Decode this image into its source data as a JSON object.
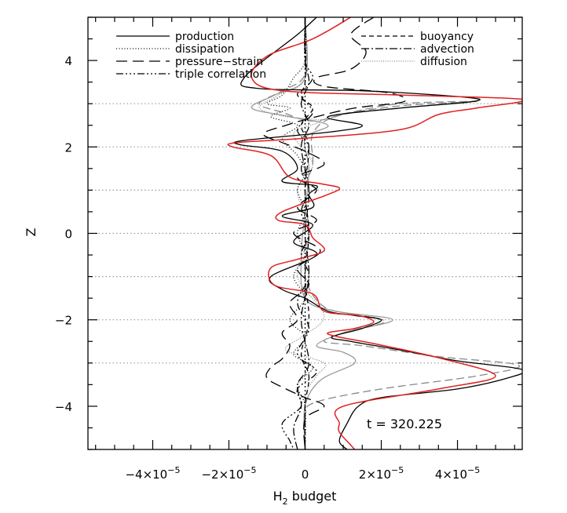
{
  "chart_data": {
    "type": "line",
    "xlabel_main": "H",
    "xlabel_sub": "2",
    "xlabel_rest": " budget",
    "ylabel": "Z",
    "xlim": [
      -5.7e-05,
      5.7e-05
    ],
    "ylim": [
      -5,
      5
    ],
    "x_ticks": [
      {
        "value": -4e-05,
        "mant": "−4×10",
        "exp": "−5"
      },
      {
        "value": -2e-05,
        "mant": "−2×10",
        "exp": "−5"
      },
      {
        "value": 0,
        "mant": "0",
        "exp": ""
      },
      {
        "value": 2e-05,
        "mant": "2×10",
        "exp": "−5"
      },
      {
        "value": 4e-05,
        "mant": "4×10",
        "exp": "−5"
      }
    ],
    "y_ticks": [
      {
        "value": -4,
        "label": "−4"
      },
      {
        "value": -2,
        "label": "−2"
      },
      {
        "value": 0,
        "label": "0"
      },
      {
        "value": 2,
        "label": "2"
      },
      {
        "value": 4,
        "label": "4"
      }
    ],
    "gridlines_y": [
      -3,
      -2,
      -1,
      0,
      1,
      2,
      3
    ],
    "annotation": "t  =  320.225",
    "series": [
      {
        "name": "production",
        "color": "#000000",
        "dash": "solid",
        "points": [
          [
            3e-06,
            5.0
          ],
          [
            -2e-06,
            4.6
          ],
          [
            -1.6e-05,
            3.6
          ],
          [
            -1.2e-05,
            3.35
          ],
          [
            1.5e-05,
            3.3
          ],
          [
            4.2e-05,
            3.15
          ],
          [
            4.4e-05,
            3.05
          ],
          [
            2.5e-05,
            2.9
          ],
          [
            6e-06,
            2.7
          ],
          [
            1.5e-05,
            2.5
          ],
          [
            7e-06,
            2.35
          ],
          [
            -1.6e-05,
            2.15
          ],
          [
            -1.7e-05,
            2.05
          ],
          [
            -6e-06,
            1.9
          ],
          [
            -2e-06,
            1.5
          ],
          [
            -6e-06,
            1.2
          ],
          [
            3e-06,
            1.1
          ],
          [
            1e-06,
            0.9
          ],
          [
            2e-06,
            0.6
          ],
          [
            -6e-06,
            0.4
          ],
          [
            2e-06,
            0.2
          ],
          [
            -3e-06,
            -0.2
          ],
          [
            3e-06,
            -0.5
          ],
          [
            -9e-06,
            -1.0
          ],
          [
            -6e-06,
            -1.3
          ],
          [
            0.0,
            -1.5
          ],
          [
            6e-06,
            -1.8
          ],
          [
            1.3e-05,
            -1.9
          ],
          [
            2e-05,
            -2.0
          ],
          [
            1.5e-05,
            -2.2
          ],
          [
            7e-06,
            -2.4
          ],
          [
            1.2e-05,
            -2.5
          ],
          [
            2.5e-05,
            -2.7
          ],
          [
            4e-05,
            -2.95
          ],
          [
            5.7e-05,
            -3.15
          ],
          [
            5.3e-05,
            -3.35
          ],
          [
            4e-05,
            -3.6
          ],
          [
            2e-05,
            -3.8
          ],
          [
            1.4e-05,
            -4.0
          ],
          [
            1.1e-05,
            -4.4
          ],
          [
            9e-06,
            -4.8
          ],
          [
            1.1e-05,
            -5.0
          ]
        ]
      },
      {
        "name": "production (red)",
        "color": "#e02020",
        "dash": "solid",
        "points": [
          [
            1.2e-05,
            5.0
          ],
          [
            2e-06,
            4.5
          ],
          [
            -1e-05,
            4.1
          ],
          [
            -1.4e-05,
            3.6
          ],
          [
            -6e-06,
            3.3
          ],
          [
            2.5e-05,
            3.2
          ],
          [
            5.7e-05,
            3.1
          ],
          [
            4.5e-05,
            2.9
          ],
          [
            3.5e-05,
            2.75
          ],
          [
            2.5e-05,
            2.4
          ],
          [
            0.0,
            2.2
          ],
          [
            -1.8e-05,
            2.1
          ],
          [
            -1.9e-05,
            2.0
          ],
          [
            -9e-06,
            1.8
          ],
          [
            -4e-06,
            1.3
          ],
          [
            4e-06,
            1.15
          ],
          [
            9e-06,
            1.05
          ],
          [
            6e-06,
            0.9
          ],
          [
            -6e-06,
            0.5
          ],
          [
            -7e-06,
            0.3
          ],
          [
            0.0,
            0.2
          ],
          [
            2e-06,
            -0.1
          ],
          [
            5e-06,
            -0.4
          ],
          [
            -2e-06,
            -0.6
          ],
          [
            -9e-06,
            -0.8
          ],
          [
            -8e-06,
            -1.2
          ],
          [
            2e-06,
            -1.4
          ],
          [
            5e-06,
            -1.8
          ],
          [
            1.4e-05,
            -1.9
          ],
          [
            1.8e-05,
            -2.05
          ],
          [
            1.3e-05,
            -2.2
          ],
          [
            6e-06,
            -2.3
          ],
          [
            9e-06,
            -2.4
          ],
          [
            1.8e-05,
            -2.55
          ],
          [
            3.6e-05,
            -2.9
          ],
          [
            5e-05,
            -3.3
          ],
          [
            3.5e-05,
            -3.6
          ],
          [
            1e-05,
            -4.0
          ],
          [
            9e-06,
            -4.4
          ],
          [
            9e-06,
            -4.6
          ],
          [
            1.2e-05,
            -4.9
          ],
          [
            1.3e-05,
            -5.0
          ]
        ]
      },
      {
        "name": "dissipation",
        "color": "#000000",
        "dash": "1,2.5",
        "points": [
          [
            0.0,
            5.0
          ],
          [
            0.0,
            4.0
          ],
          [
            -3e-06,
            3.6
          ],
          [
            -6e-06,
            3.2
          ],
          [
            -1e-05,
            3.0
          ],
          [
            -4e-06,
            2.9
          ],
          [
            -9e-06,
            2.7
          ],
          [
            -2e-06,
            2.5
          ],
          [
            -6e-06,
            2.2
          ],
          [
            -2e-06,
            1.8
          ],
          [
            0.0,
            1.4
          ],
          [
            -2e-06,
            1.0
          ],
          [
            0.0,
            0.5
          ],
          [
            -2e-06,
            0.0
          ],
          [
            0.0,
            -0.5
          ],
          [
            -3e-06,
            -1.0
          ],
          [
            0.0,
            -1.5
          ],
          [
            -4e-06,
            -2.0
          ],
          [
            0.0,
            -2.4
          ],
          [
            -3e-06,
            -2.8
          ],
          [
            2e-06,
            -3.1
          ],
          [
            -2e-06,
            -3.5
          ],
          [
            0.0,
            -4.0
          ],
          [
            0.0,
            -5.0
          ]
        ]
      },
      {
        "name": "pressure−strain",
        "color": "#000000",
        "dash": "14,7",
        "points": [
          [
            1.8e-05,
            5.0
          ],
          [
            1.2e-05,
            4.6
          ],
          [
            1.6e-05,
            4.2
          ],
          [
            1.2e-05,
            3.8
          ],
          [
            3e-06,
            3.6
          ],
          [
            5e-06,
            3.4
          ],
          [
            2.2e-05,
            3.25
          ],
          [
            2.6e-05,
            3.05
          ],
          [
            1.3e-05,
            2.9
          ],
          [
            3e-06,
            2.7
          ],
          [
            -5e-06,
            2.5
          ],
          [
            -1.1e-05,
            2.3
          ],
          [
            -6e-06,
            2.1
          ],
          [
            0.0,
            1.9
          ],
          [
            5e-06,
            1.6
          ],
          [
            -2e-06,
            1.3
          ],
          [
            3e-06,
            1.0
          ],
          [
            -2e-06,
            0.6
          ],
          [
            3e-06,
            0.3
          ],
          [
            -3e-06,
            0.0
          ],
          [
            4e-06,
            -0.4
          ],
          [
            -2e-06,
            -0.8
          ],
          [
            1e-06,
            -1.2
          ],
          [
            -4e-06,
            -1.6
          ],
          [
            -2e-06,
            -2.0
          ],
          [
            -6e-06,
            -2.3
          ],
          [
            -4e-06,
            -2.6
          ],
          [
            -6e-06,
            -2.9
          ],
          [
            -9e-06,
            -3.1
          ],
          [
            -1e-05,
            -3.35
          ],
          [
            -5e-06,
            -3.6
          ],
          [
            0.0,
            -3.8
          ],
          [
            5e-06,
            -4.0
          ],
          [
            0.0,
            -4.3
          ],
          [
            0.0,
            -5.0
          ]
        ]
      },
      {
        "name": "triple correlation",
        "color": "#000000",
        "dash": "9,3,2,3,2,3,2,3",
        "points": [
          [
            0.0,
            5.0
          ],
          [
            0.0,
            4.0
          ],
          [
            2e-06,
            3.6
          ],
          [
            -1e-06,
            3.2
          ],
          [
            2e-06,
            2.8
          ],
          [
            -2e-06,
            2.4
          ],
          [
            1e-06,
            2.0
          ],
          [
            -1e-06,
            1.5
          ],
          [
            1e-06,
            1.0
          ],
          [
            -1e-06,
            0.5
          ],
          [
            1e-06,
            0.0
          ],
          [
            -1e-06,
            -0.5
          ],
          [
            1e-06,
            -1.0
          ],
          [
            -2e-06,
            -1.6
          ],
          [
            1e-06,
            -2.2
          ],
          [
            -2e-06,
            -2.8
          ],
          [
            3e-06,
            -3.2
          ],
          [
            -2e-06,
            -3.6
          ],
          [
            -1e-06,
            -4.0
          ],
          [
            -6e-06,
            -4.4
          ],
          [
            -4e-06,
            -4.8
          ],
          [
            -3e-06,
            -5.0
          ]
        ]
      },
      {
        "name": "buoyancy",
        "color": "#000000",
        "dash": "6,4",
        "points": [
          [
            0.0,
            5.0
          ],
          [
            0.0,
            3.5
          ],
          [
            -2e-06,
            3.2
          ],
          [
            2e-06,
            2.9
          ],
          [
            -1e-06,
            2.5
          ],
          [
            1e-06,
            2.0
          ],
          [
            0.0,
            1.0
          ],
          [
            1e-06,
            0.0
          ],
          [
            0.0,
            -1.0
          ],
          [
            1e-06,
            -2.0
          ],
          [
            -1e-06,
            -2.8
          ],
          [
            1e-06,
            -3.3
          ],
          [
            0.0,
            -4.0
          ],
          [
            0.0,
            -5.0
          ]
        ]
      },
      {
        "name": "advection",
        "color": "#000000",
        "dash": "10,3,2,3",
        "points": [
          [
            0.0,
            5.0
          ],
          [
            0.0,
            4.0
          ],
          [
            1e-06,
            3.5
          ],
          [
            -1e-06,
            3.0
          ],
          [
            1e-06,
            2.5
          ],
          [
            -1e-06,
            2.0
          ],
          [
            1e-06,
            1.0
          ],
          [
            0.0,
            0.0
          ],
          [
            1e-06,
            -1.0
          ],
          [
            -1e-06,
            -2.0
          ],
          [
            1e-06,
            -3.0
          ],
          [
            -2e-06,
            -3.5
          ],
          [
            -1e-06,
            -4.0
          ],
          [
            -3e-06,
            -4.5
          ],
          [
            -2e-06,
            -5.0
          ]
        ]
      },
      {
        "name": "diffusion",
        "color": "#888888",
        "dash": "1,1.8",
        "points": [
          [
            0.0,
            5.0
          ],
          [
            0.0,
            3.6
          ],
          [
            -7e-06,
            3.2
          ],
          [
            -1.2e-05,
            2.9
          ],
          [
            -5e-06,
            2.7
          ],
          [
            4e-06,
            2.6
          ],
          [
            -3e-06,
            2.3
          ],
          [
            2e-06,
            1.6
          ],
          [
            -2e-06,
            1.0
          ],
          [
            1e-06,
            0.0
          ],
          [
            -2e-06,
            -1.0
          ],
          [
            5e-06,
            -1.9
          ],
          [
            -1e-06,
            -2.4
          ],
          [
            -5e-06,
            -2.7
          ],
          [
            5e-06,
            -3.0
          ],
          [
            3e-06,
            -3.3
          ],
          [
            0.0,
            -3.8
          ],
          [
            0.0,
            -5.0
          ]
        ]
      },
      {
        "name": "gray long-dash",
        "color": "#888888",
        "dash": "10,5",
        "points": [
          [
            0.0,
            5.0
          ],
          [
            0.0,
            3.7
          ],
          [
            -6e-06,
            3.3
          ],
          [
            -1.2e-05,
            3.0
          ],
          [
            -6e-06,
            2.8
          ],
          [
            2e-06,
            2.6
          ],
          [
            1.2e-05,
            2.8
          ],
          [
            2.5e-05,
            3.0
          ],
          [
            4.5e-05,
            3.05
          ],
          [
            2.5e-05,
            2.95
          ],
          [
            8e-06,
            2.7
          ],
          [
            2e-06,
            2.3
          ],
          [
            2e-06,
            1.6
          ],
          [
            0.0,
            1.0
          ],
          [
            1e-06,
            0.0
          ],
          [
            0.0,
            -1.0
          ],
          [
            5e-06,
            -1.7
          ],
          [
            1.5e-05,
            -1.9
          ],
          [
            2.1e-05,
            -2.05
          ],
          [
            1.2e-05,
            -2.25
          ],
          [
            5e-06,
            -2.5
          ],
          [
            1.5e-05,
            -2.6
          ],
          [
            3.5e-05,
            -2.85
          ],
          [
            5.6e-05,
            -3.05
          ],
          [
            4.5e-05,
            -3.3
          ],
          [
            2e-05,
            -3.6
          ],
          [
            3e-06,
            -3.9
          ],
          [
            0.0,
            -4.2
          ],
          [
            0.0,
            -5.0
          ]
        ]
      },
      {
        "name": "gray solid",
        "color": "#999999",
        "dash": "solid",
        "points": [
          [
            0.0,
            5.0
          ],
          [
            0.0,
            3.6
          ],
          [
            -8e-06,
            3.2
          ],
          [
            -1.4e-05,
            2.9
          ],
          [
            -4e-06,
            2.7
          ],
          [
            6e-06,
            2.5
          ],
          [
            0.0,
            2.2
          ],
          [
            1e-06,
            1.5
          ],
          [
            0.0,
            0.5
          ],
          [
            -1e-06,
            -0.5
          ],
          [
            0.0,
            -1.5
          ],
          [
            8e-06,
            -1.8
          ],
          [
            2.3e-05,
            -2.0
          ],
          [
            1e-05,
            -2.3
          ],
          [
            3e-06,
            -2.6
          ],
          [
            1e-05,
            -2.75
          ],
          [
            1.3e-05,
            -3.0
          ],
          [
            4e-06,
            -3.4
          ],
          [
            0.0,
            -4.0
          ],
          [
            0.0,
            -5.0
          ]
        ]
      }
    ],
    "legend": {
      "left": [
        {
          "label": "production",
          "dash": "solid"
        },
        {
          "label": "dissipation",
          "dash": "1,2.5"
        },
        {
          "label": "pressure−strain",
          "dash": "14,7"
        },
        {
          "label": "triple correlation",
          "dash": "9,3,2,3,2,3,2,3"
        }
      ],
      "right": [
        {
          "label": "buoyancy",
          "dash": "6,4"
        },
        {
          "label": "advection",
          "dash": "10,3,2,3"
        },
        {
          "label": "diffusion",
          "dash": "1,1.8"
        }
      ]
    }
  }
}
